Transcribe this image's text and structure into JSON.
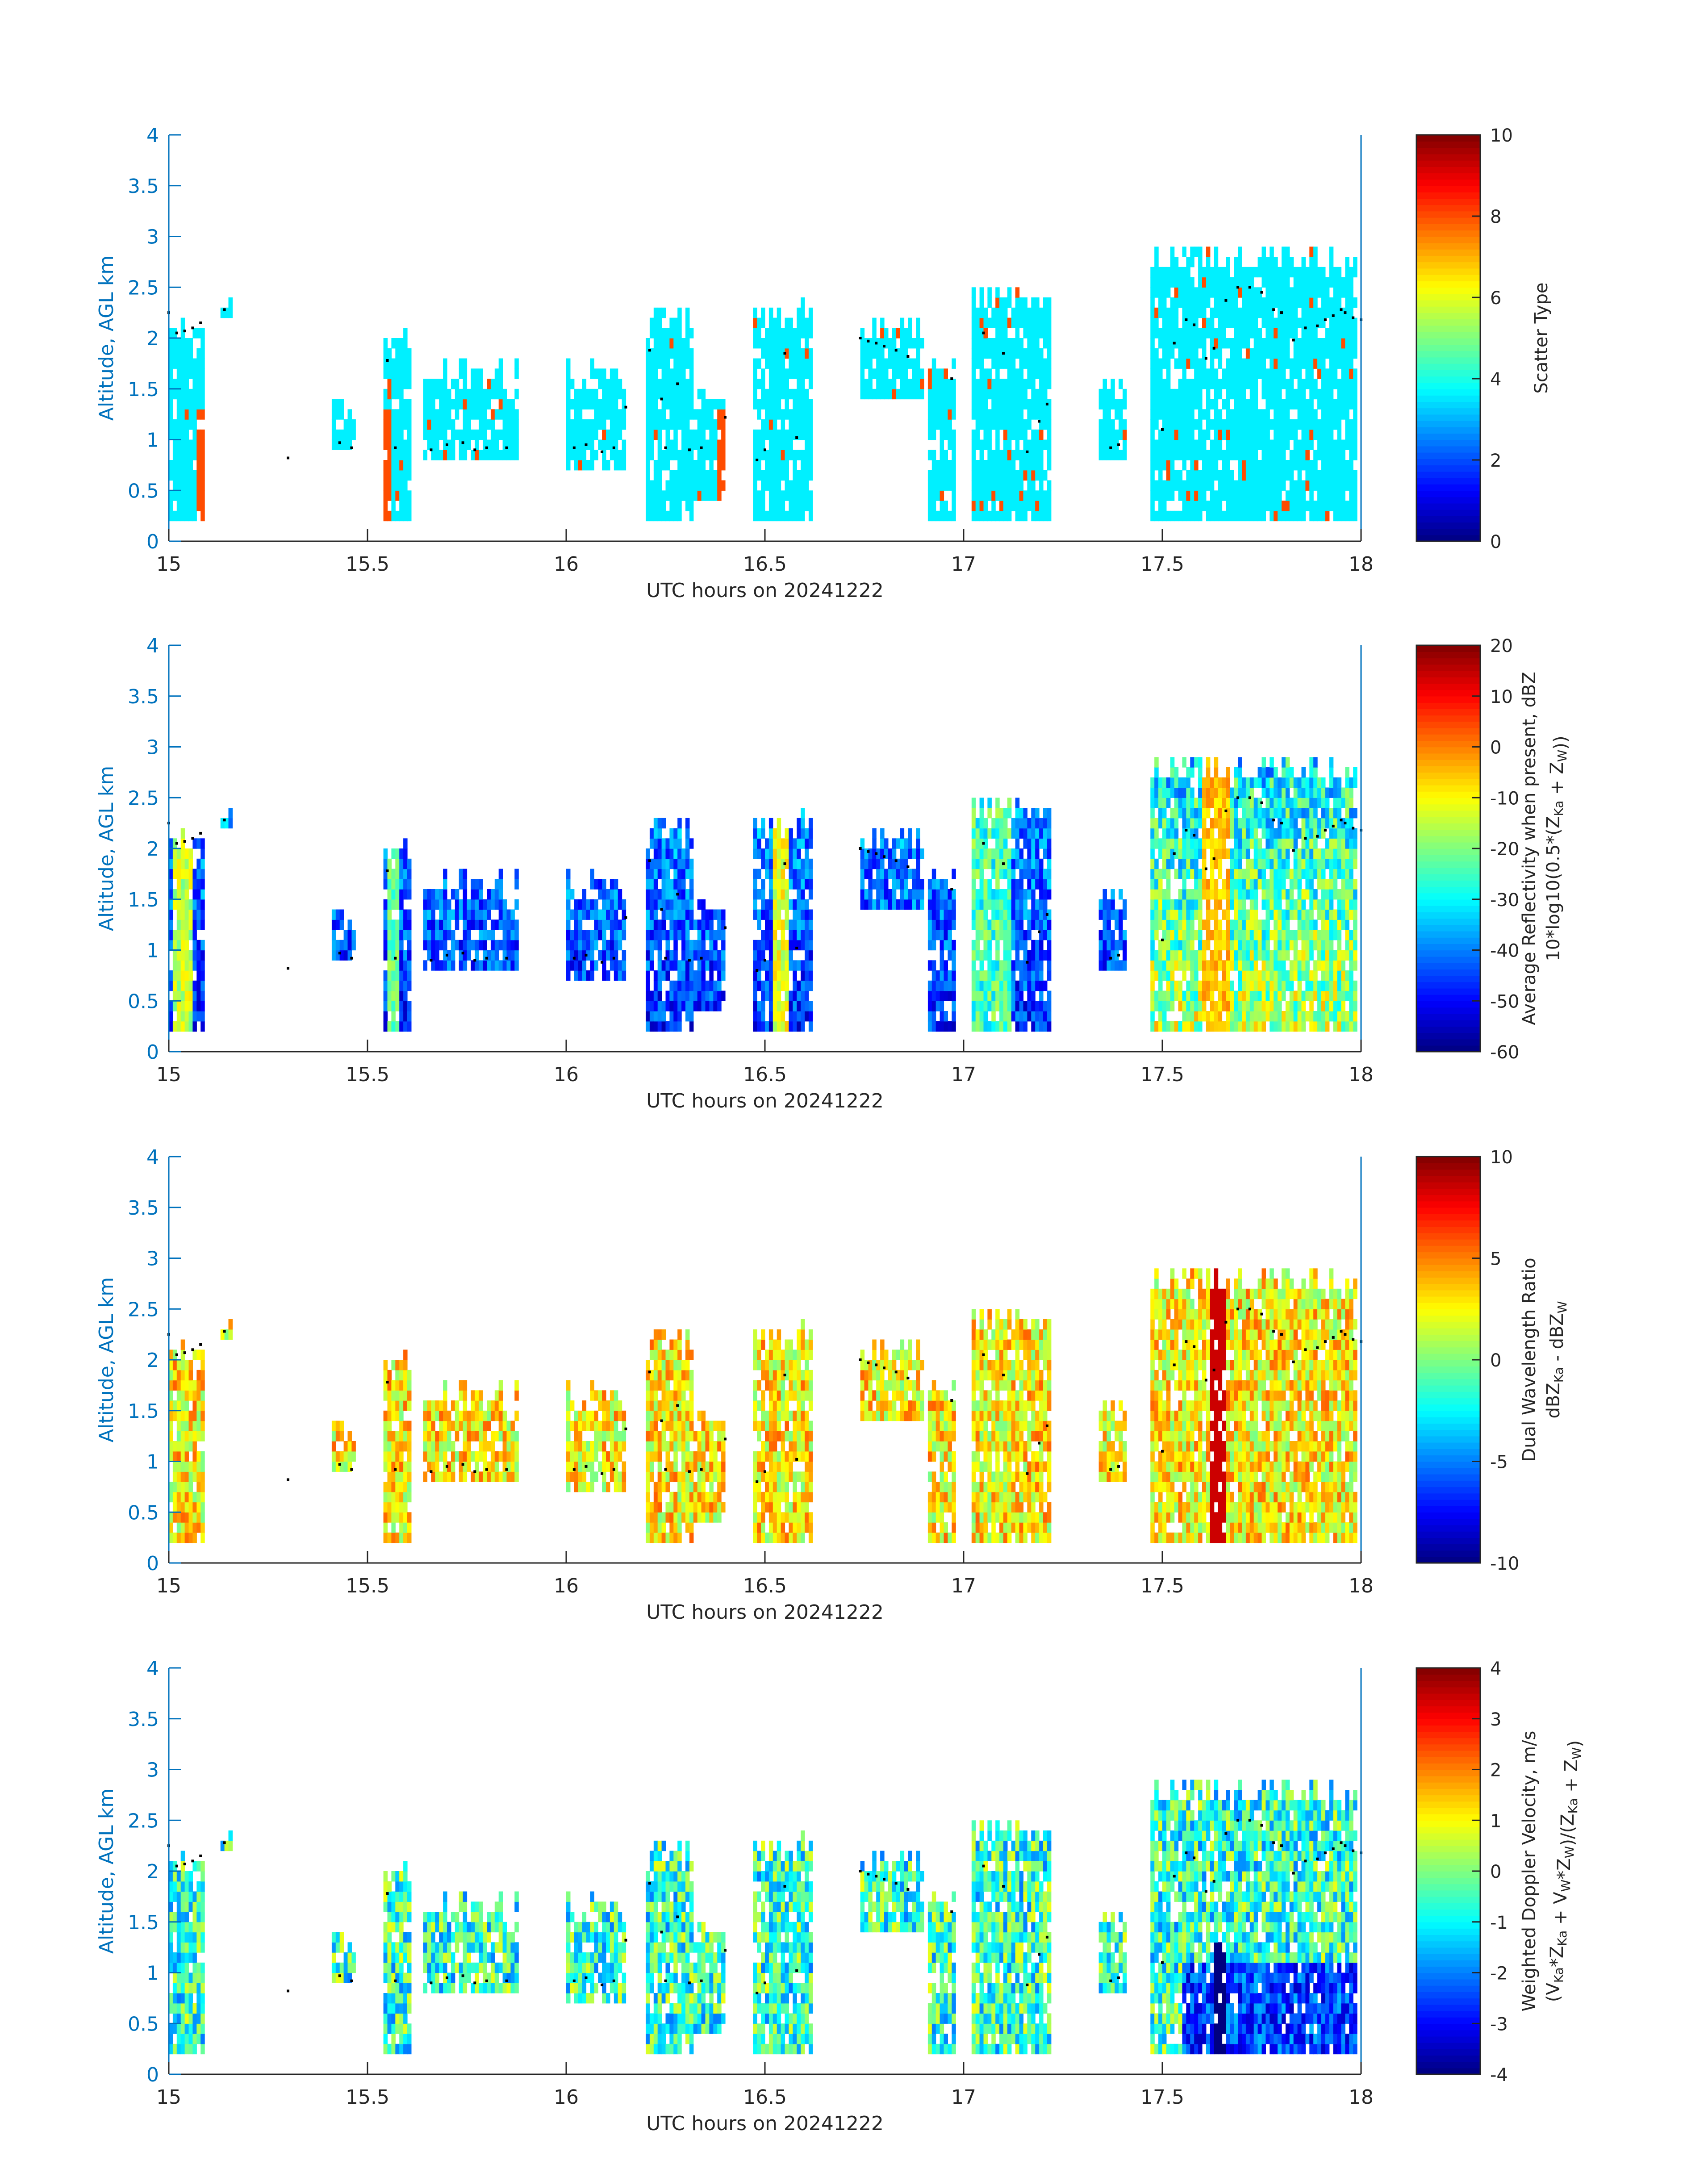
{
  "figure": {
    "colors": {
      "axis": "#0072BD",
      "text": "#262626",
      "track": "#000000",
      "background": "#ffffff"
    }
  },
  "chart_data": [
    {
      "type": "heatmap",
      "title": "",
      "xlabel": "UTC hours on 20241222",
      "ylabel": "Altitude, AGL km",
      "xlim": [
        15,
        18
      ],
      "ylim": [
        0,
        4
      ],
      "xticks": [
        "15",
        "15.5",
        "16",
        "16.5",
        "17",
        "17.5",
        "18"
      ],
      "yticks": [
        "0",
        "0.5",
        "1",
        "1.5",
        "2",
        "2.5",
        "3",
        "3.5",
        "4"
      ],
      "colorbar": {
        "label_lines": [
          "Scatter Type"
        ],
        "range": [
          0,
          10
        ],
        "ticks": [
          "0",
          "2",
          "4",
          "6",
          "8",
          "10"
        ],
        "colormap": "jet"
      },
      "cell_values": [
        3.6,
        8.0
      ],
      "grid": false,
      "seed": 11
    },
    {
      "type": "heatmap",
      "title": "",
      "xlabel": "UTC hours on 20241222",
      "ylabel": "Altitude, AGL km",
      "xlim": [
        15,
        18
      ],
      "ylim": [
        0,
        4
      ],
      "xticks": [
        "15",
        "15.5",
        "16",
        "16.5",
        "17",
        "17.5",
        "18"
      ],
      "yticks": [
        "0",
        "0.5",
        "1",
        "1.5",
        "2",
        "2.5",
        "3",
        "3.5",
        "4"
      ],
      "colorbar": {
        "label_lines": [
          "Average Reflectivity when present, dBZ",
          "10*log10(0.5*(Z_Ka + Z_W))"
        ],
        "range": [
          -60,
          20
        ],
        "ticks": [
          "-60",
          "-50",
          "-40",
          "-30",
          "-20",
          "-10",
          "0",
          "10",
          "20"
        ],
        "colormap": "jet"
      },
      "value_range_observed": [
        -55,
        10
      ],
      "grid": false,
      "seed": 23
    },
    {
      "type": "heatmap",
      "title": "",
      "xlabel": "UTC hours on 20241222",
      "ylabel": "Altitude, AGL km",
      "xlim": [
        15,
        18
      ],
      "ylim": [
        0,
        4
      ],
      "xticks": [
        "15",
        "15.5",
        "16",
        "16.5",
        "17",
        "17.5",
        "18"
      ],
      "yticks": [
        "0",
        "0.5",
        "1",
        "1.5",
        "2",
        "2.5",
        "3",
        "3.5",
        "4"
      ],
      "colorbar": {
        "label_lines": [
          "Dual Wavelength Ratio",
          "dBZ_Ka - dBZ_W"
        ],
        "range": [
          -10,
          10
        ],
        "ticks": [
          "-10",
          "-5",
          "0",
          "5",
          "10"
        ],
        "colormap": "jet"
      },
      "value_range_observed": [
        -6,
        9
      ],
      "grid": false,
      "seed": 37
    },
    {
      "type": "heatmap",
      "title": "",
      "xlabel": "UTC hours on 20241222",
      "ylabel": "Altitude, AGL km",
      "xlim": [
        15,
        18
      ],
      "ylim": [
        0,
        4
      ],
      "xticks": [
        "15",
        "15.5",
        "16",
        "16.5",
        "17",
        "17.5",
        "18"
      ],
      "yticks": [
        "0",
        "0.5",
        "1",
        "1.5",
        "2",
        "2.5",
        "3",
        "3.5",
        "4"
      ],
      "colorbar": {
        "label_lines": [
          "Weighted Doppler Velocity, m/s",
          "(V_Ka*Z_Ka + V_W*Z_W)/(Z_Ka + Z_W)"
        ],
        "range": [
          -4,
          4
        ],
        "ticks": [
          "-4",
          "-3",
          "-2",
          "-1",
          "0",
          "1",
          "2",
          "3",
          "4"
        ],
        "colormap": "jet"
      },
      "value_range_observed": [
        -4,
        3
      ],
      "grid": false,
      "seed": 53
    }
  ],
  "clouds": [
    {
      "x0": 15.0,
      "x1": 15.09,
      "top": 2.15,
      "bottom": 0.2
    },
    {
      "x0": 15.13,
      "x1": 15.16,
      "top": 2.4,
      "bottom": 2.2
    },
    {
      "x0": 15.41,
      "x1": 15.47,
      "top": 1.3,
      "bottom": 0.85
    },
    {
      "x0": 15.54,
      "x1": 15.61,
      "top": 2.0,
      "bottom": 0.2
    },
    {
      "x0": 15.64,
      "x1": 15.88,
      "top": 1.65,
      "bottom": 0.75
    },
    {
      "x0": 16.0,
      "x1": 16.15,
      "top": 1.65,
      "bottom": 0.7
    },
    {
      "x0": 16.2,
      "x1": 16.32,
      "top": 2.15,
      "bottom": 0.2
    },
    {
      "x0": 16.32,
      "x1": 16.4,
      "top": 1.4,
      "bottom": 0.4
    },
    {
      "x0": 16.47,
      "x1": 16.62,
      "top": 2.25,
      "bottom": 0.2
    },
    {
      "x0": 16.74,
      "x1": 16.9,
      "top": 2.1,
      "bottom": 1.4
    },
    {
      "x0": 16.91,
      "x1": 16.98,
      "top": 1.7,
      "bottom": 0.2
    },
    {
      "x0": 17.02,
      "x1": 17.22,
      "top": 2.4,
      "bottom": 0.2
    },
    {
      "x0": 17.34,
      "x1": 17.41,
      "top": 1.5,
      "bottom": 0.8
    },
    {
      "x0": 17.47,
      "x1": 17.99,
      "top": 2.8,
      "bottom": 0.2
    }
  ],
  "track": [
    [
      15.0,
      2.25
    ],
    [
      15.02,
      2.05
    ],
    [
      15.04,
      2.07
    ],
    [
      15.06,
      2.1
    ],
    [
      15.08,
      2.15
    ],
    [
      15.14,
      2.28
    ],
    [
      15.3,
      0.82
    ],
    [
      15.43,
      0.97
    ],
    [
      15.46,
      0.92
    ],
    [
      15.55,
      1.78
    ],
    [
      15.57,
      0.92
    ],
    [
      15.66,
      0.9
    ],
    [
      15.7,
      0.95
    ],
    [
      15.74,
      0.97
    ],
    [
      15.77,
      0.9
    ],
    [
      15.8,
      0.92
    ],
    [
      15.85,
      0.92
    ],
    [
      16.02,
      0.92
    ],
    [
      16.05,
      0.95
    ],
    [
      16.09,
      0.88
    ],
    [
      16.12,
      0.92
    ],
    [
      16.15,
      1.32
    ],
    [
      16.21,
      1.88
    ],
    [
      16.24,
      1.4
    ],
    [
      16.25,
      0.92
    ],
    [
      16.28,
      1.55
    ],
    [
      16.31,
      0.9
    ],
    [
      16.34,
      0.92
    ],
    [
      16.4,
      1.22
    ],
    [
      16.48,
      0.8
    ],
    [
      16.5,
      0.9
    ],
    [
      16.55,
      1.85
    ],
    [
      16.58,
      1.02
    ],
    [
      16.74,
      2.0
    ],
    [
      16.76,
      1.97
    ],
    [
      16.78,
      1.95
    ],
    [
      16.8,
      1.92
    ],
    [
      16.83,
      1.88
    ],
    [
      16.86,
      1.82
    ],
    [
      16.97,
      1.6
    ],
    [
      17.05,
      2.05
    ],
    [
      17.1,
      1.85
    ],
    [
      17.16,
      0.88
    ],
    [
      17.19,
      1.18
    ],
    [
      17.21,
      1.35
    ],
    [
      17.37,
      0.92
    ],
    [
      17.39,
      0.95
    ],
    [
      17.5,
      1.1
    ],
    [
      17.53,
      1.95
    ],
    [
      17.56,
      2.18
    ],
    [
      17.58,
      2.13
    ],
    [
      17.61,
      1.8
    ],
    [
      17.63,
      1.9
    ],
    [
      17.66,
      2.37
    ],
    [
      17.69,
      2.5
    ],
    [
      17.72,
      2.5
    ],
    [
      17.75,
      2.45
    ],
    [
      17.78,
      2.28
    ],
    [
      17.8,
      2.25
    ],
    [
      17.83,
      1.98
    ],
    [
      17.86,
      2.1
    ],
    [
      17.89,
      2.12
    ],
    [
      17.91,
      2.18
    ],
    [
      17.93,
      2.22
    ],
    [
      17.95,
      2.28
    ],
    [
      17.96,
      2.25
    ],
    [
      17.98,
      2.2
    ],
    [
      18.0,
      2.18
    ]
  ]
}
